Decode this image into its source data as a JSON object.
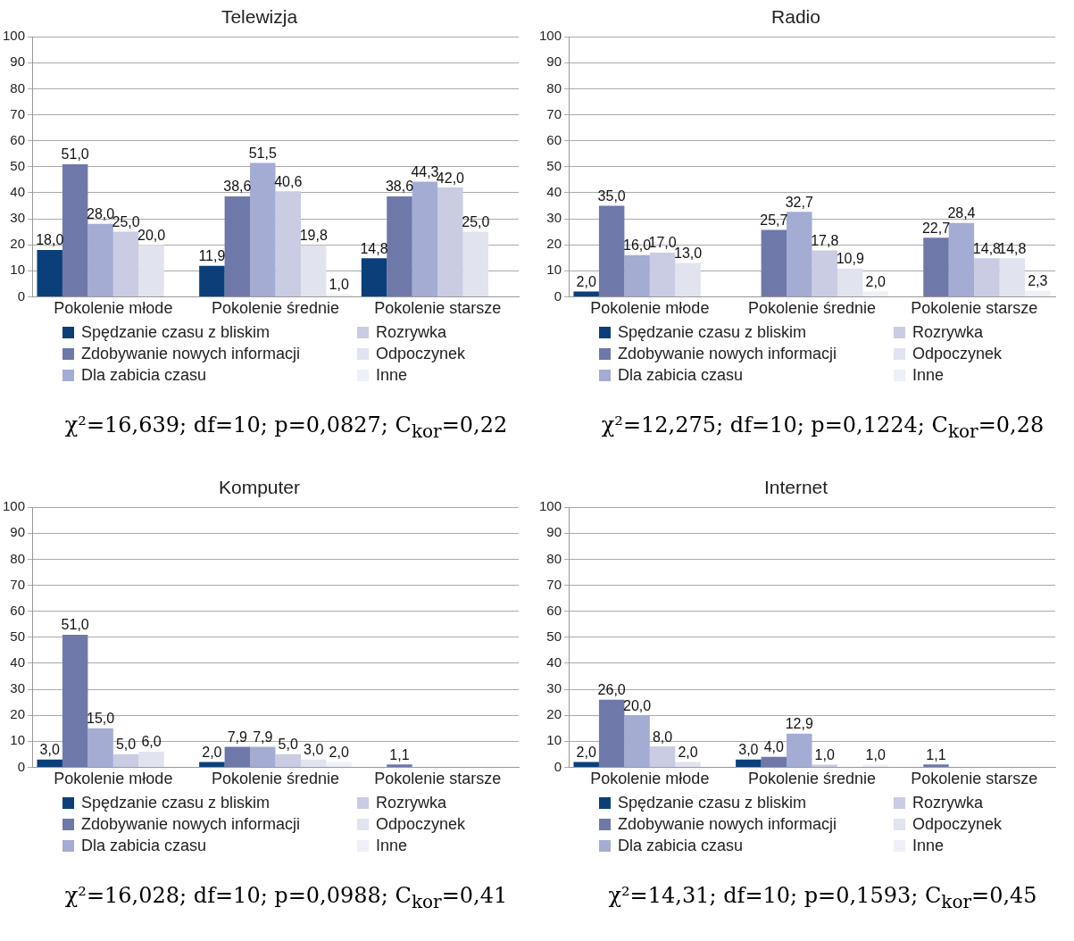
{
  "chart_data": [
    {
      "type": "bar",
      "title": "Telewizja",
      "categories": [
        "Pokolenie młode",
        "Pokolenie średnie",
        "Pokolenie starsze"
      ],
      "ylim": [
        0,
        100
      ],
      "yticks": [
        0,
        10,
        20,
        30,
        40,
        50,
        60,
        70,
        80,
        90,
        100
      ],
      "grid": "y",
      "legend": "bottom",
      "annotations": [
        "χ²=16,639; df=10; p=0,0827; C$_{kor}$=0,22"
      ],
      "series": [
        {
          "name": "Spędzanie czasu z bliskim",
          "color": "#0b3f7a",
          "values": [
            18.0,
            11.9,
            14.8
          ],
          "value_labels": [
            "18,0",
            "11,9",
            "14,8"
          ]
        },
        {
          "name": "Zdobywanie nowych informacji",
          "color": "#6e79aa",
          "values": [
            51.0,
            38.6,
            38.6
          ],
          "value_labels": [
            "51,0",
            "38,6",
            "38,6"
          ]
        },
        {
          "name": "Dla zabicia czasu",
          "color": "#a4acd4",
          "values": [
            28.0,
            51.5,
            44.3
          ],
          "value_labels": [
            "28,0",
            "51,5",
            "44,3"
          ]
        },
        {
          "name": "Rozrywka",
          "color": "#c9cce2",
          "values": [
            25.0,
            40.6,
            42.0
          ],
          "value_labels": [
            "25,0",
            "40,6",
            "42,0"
          ]
        },
        {
          "name": "Odpoczynek",
          "color": "#e1e3ef",
          "values": [
            20.0,
            19.8,
            25.0
          ],
          "value_labels": [
            "20,0",
            "19,8",
            "25,0"
          ]
        },
        {
          "name": "Inne",
          "color": "#eef0f7",
          "values": [
            null,
            1.0,
            null
          ],
          "value_labels": [
            null,
            "1,0",
            null
          ]
        }
      ]
    },
    {
      "type": "bar",
      "title": "Radio",
      "categories": [
        "Pokolenie młode",
        "Pokolenie średnie",
        "Pokolenie starsze"
      ],
      "ylim": [
        0,
        100
      ],
      "yticks": [
        0,
        10,
        20,
        30,
        40,
        50,
        60,
        70,
        80,
        90,
        100
      ],
      "grid": "y",
      "legend": "bottom",
      "annotations": [
        "χ²=12,275; df=10; p=0,1224; C$_{kor}$=0,28"
      ],
      "series": [
        {
          "name": "Spędzanie czasu z bliskim",
          "color": "#0b3f7a",
          "values": [
            2.0,
            null,
            null
          ],
          "value_labels": [
            "2,0",
            null,
            null
          ]
        },
        {
          "name": "Zdobywanie nowych informacji",
          "color": "#6e79aa",
          "values": [
            35.0,
            25.7,
            22.7
          ],
          "value_labels": [
            "35,0",
            "25,7",
            "22,7"
          ]
        },
        {
          "name": "Dla zabicia czasu",
          "color": "#a4acd4",
          "values": [
            16.0,
            32.7,
            28.4
          ],
          "value_labels": [
            "16,0",
            "32,7",
            "28,4"
          ]
        },
        {
          "name": "Rozrywka",
          "color": "#c9cce2",
          "values": [
            17.0,
            17.8,
            14.8
          ],
          "value_labels": [
            "17,0",
            "17,8",
            "14,8"
          ]
        },
        {
          "name": "Odpoczynek",
          "color": "#e1e3ef",
          "values": [
            13.0,
            10.9,
            14.8
          ],
          "value_labels": [
            "13,0",
            "10,9",
            "14,8"
          ]
        },
        {
          "name": "Inne",
          "color": "#eef0f7",
          "values": [
            null,
            2.0,
            2.3
          ],
          "value_labels": [
            null,
            "2,0",
            "2,3"
          ]
        }
      ]
    },
    {
      "type": "bar",
      "title": "Komputer",
      "categories": [
        "Pokolenie młode",
        "Pokolenie średnie",
        "Pokolenie starsze"
      ],
      "ylim": [
        0,
        100
      ],
      "yticks": [
        0,
        10,
        20,
        30,
        40,
        50,
        60,
        70,
        80,
        90,
        100
      ],
      "grid": "y",
      "legend": "bottom",
      "annotations": [
        "χ²=16,028; df=10; p=0,0988; C$_{kor}$=0,41"
      ],
      "series": [
        {
          "name": "Spędzanie czasu z bliskim",
          "color": "#0b3f7a",
          "values": [
            3.0,
            2.0,
            null
          ],
          "value_labels": [
            "3,0",
            "2,0",
            null
          ]
        },
        {
          "name": "Zdobywanie nowych informacji",
          "color": "#6e79aa",
          "values": [
            51.0,
            7.9,
            1.1
          ],
          "value_labels": [
            "51,0",
            "7,9",
            "1,1"
          ]
        },
        {
          "name": "Dla zabicia czasu",
          "color": "#a4acd4",
          "values": [
            15.0,
            7.9,
            null
          ],
          "value_labels": [
            "15,0",
            "7,9",
            null
          ]
        },
        {
          "name": "Rozrywka",
          "color": "#c9cce2",
          "values": [
            5.0,
            5.0,
            null
          ],
          "value_labels": [
            "5,0",
            "5,0",
            null
          ]
        },
        {
          "name": "Odpoczynek",
          "color": "#e1e3ef",
          "values": [
            6.0,
            3.0,
            null
          ],
          "value_labels": [
            "6,0",
            "3,0",
            null
          ]
        },
        {
          "name": "Inne",
          "color": "#eef0f7",
          "values": [
            null,
            2.0,
            null
          ],
          "value_labels": [
            null,
            "2,0",
            null
          ]
        }
      ]
    },
    {
      "type": "bar",
      "title": "Internet",
      "categories": [
        "Pokolenie młode",
        "Pokolenie średnie",
        "Pokolenie starsze"
      ],
      "ylim": [
        0,
        100
      ],
      "yticks": [
        0,
        10,
        20,
        30,
        40,
        50,
        60,
        70,
        80,
        90,
        100
      ],
      "grid": "y",
      "legend": "bottom",
      "annotations": [
        "χ²=14,31; df=10; p=0,1593; C$_{kor}$=0,45"
      ],
      "series": [
        {
          "name": "Spędzanie czasu z bliskim",
          "color": "#0b3f7a",
          "values": [
            2.0,
            3.0,
            null
          ],
          "value_labels": [
            "2,0",
            "3,0",
            null
          ]
        },
        {
          "name": "Zdobywanie nowych informacji",
          "color": "#6e79aa",
          "values": [
            26.0,
            4.0,
            1.1
          ],
          "value_labels": [
            "26,0",
            "4,0",
            "1,1"
          ]
        },
        {
          "name": "Dla zabicia czasu",
          "color": "#a4acd4",
          "values": [
            20.0,
            12.9,
            null
          ],
          "value_labels": [
            "20,0",
            "12,9",
            null
          ]
        },
        {
          "name": "Rozrywka",
          "color": "#c9cce2",
          "values": [
            8.0,
            1.0,
            null
          ],
          "value_labels": [
            "8,0",
            "1,0",
            null
          ]
        },
        {
          "name": "Odpoczynek",
          "color": "#e1e3ef",
          "values": [
            2.0,
            null,
            null
          ],
          "value_labels": [
            "2,0",
            null,
            null
          ]
        },
        {
          "name": "Inne",
          "color": "#eef0f7",
          "values": [
            null,
            1.0,
            null
          ],
          "value_labels": [
            null,
            "1,0",
            null
          ]
        }
      ]
    }
  ]
}
